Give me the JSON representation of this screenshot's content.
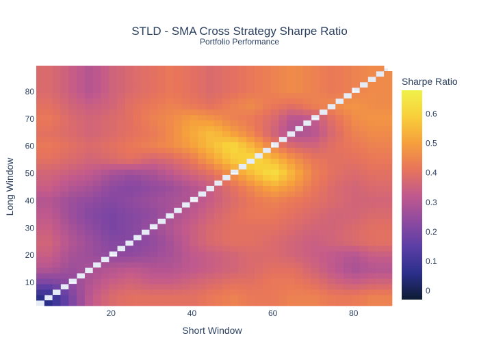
{
  "chart_data": {
    "type": "heatmap",
    "title": "STLD - SMA Cross Strategy Sharpe Ratio",
    "subtitle": "Portfolio Performance",
    "xlabel": "Short Window",
    "ylabel": "Long Window",
    "x_range": [
      2,
      88
    ],
    "y_range": [
      2,
      88
    ],
    "xlim": [
      1.5,
      88.5
    ],
    "ylim": [
      1.5,
      88.5
    ],
    "x_ticks": [
      20,
      40,
      60,
      80
    ],
    "y_ticks": [
      10,
      20,
      30,
      40,
      50,
      60,
      70,
      80
    ],
    "colorbar": {
      "title": "Sharpe Ratio",
      "range": [
        -0.03,
        0.68
      ],
      "ticks": [
        0,
        0.1,
        0.2,
        0.3,
        0.4,
        0.5,
        0.6
      ],
      "colorscale": [
        "#0d1c33",
        "#2b2f8a",
        "#5a3ea6",
        "#8e4aa0",
        "#c25a8c",
        "#e8755a",
        "#f6a03c",
        "#f8cf3a",
        "#f0f14a"
      ]
    },
    "diagonal": "no value where short window equals long window",
    "sharpe_grid_rows_long_window_80_to_5_by_5_cols_short_window_5_to_85_by_5": [
      [
        0.38,
        0.34,
        0.3,
        0.35,
        0.38,
        0.4,
        0.42,
        0.4,
        0.38,
        0.4,
        0.42,
        0.44,
        0.46,
        0.44,
        0.42,
        0.44,
        0.46
      ],
      [
        0.4,
        0.36,
        0.34,
        0.36,
        0.4,
        0.42,
        0.44,
        0.42,
        0.4,
        0.44,
        0.46,
        0.42,
        0.4,
        0.44,
        0.46,
        0.48,
        0.46
      ],
      [
        0.42,
        0.38,
        0.36,
        0.38,
        0.4,
        0.44,
        0.46,
        0.5,
        0.48,
        0.44,
        0.42,
        0.38,
        0.3,
        0.32,
        0.4,
        0.46,
        0.48
      ],
      [
        0.4,
        0.38,
        0.36,
        0.38,
        0.4,
        0.42,
        0.46,
        0.52,
        0.56,
        0.5,
        0.44,
        0.36,
        0.28,
        0.3,
        0.38,
        0.44,
        0.46
      ],
      [
        0.42,
        0.4,
        0.38,
        0.4,
        0.42,
        0.44,
        0.46,
        0.5,
        0.56,
        0.62,
        0.54,
        0.44,
        0.38,
        0.36,
        0.4,
        0.42,
        0.44
      ],
      [
        0.4,
        0.38,
        0.36,
        0.38,
        0.4,
        0.36,
        0.38,
        0.42,
        0.5,
        0.58,
        0.62,
        0.56,
        0.48,
        0.42,
        0.4,
        0.4,
        0.42
      ],
      [
        0.36,
        0.34,
        0.32,
        0.28,
        0.26,
        0.28,
        0.32,
        0.36,
        0.4,
        0.48,
        0.56,
        0.64,
        0.54,
        0.44,
        0.4,
        0.38,
        0.4
      ],
      [
        0.34,
        0.3,
        0.28,
        0.24,
        0.22,
        0.24,
        0.26,
        0.3,
        0.34,
        0.4,
        0.46,
        0.52,
        0.48,
        0.42,
        0.38,
        0.36,
        0.38
      ],
      [
        0.3,
        0.26,
        0.24,
        0.22,
        0.24,
        0.26,
        0.28,
        0.3,
        0.34,
        0.38,
        0.42,
        0.44,
        0.42,
        0.4,
        0.38,
        0.36,
        0.36
      ],
      [
        0.32,
        0.26,
        0.22,
        0.2,
        0.22,
        0.24,
        0.28,
        0.32,
        0.36,
        0.4,
        0.42,
        0.42,
        0.4,
        0.38,
        0.36,
        0.36,
        0.38
      ],
      [
        0.34,
        0.28,
        0.24,
        0.2,
        0.22,
        0.26,
        0.3,
        0.34,
        0.38,
        0.4,
        0.4,
        0.4,
        0.38,
        0.36,
        0.36,
        0.38,
        0.4
      ],
      [
        0.36,
        0.3,
        0.26,
        0.22,
        0.22,
        0.24,
        0.28,
        0.34,
        0.38,
        0.4,
        0.4,
        0.38,
        0.36,
        0.34,
        0.36,
        0.38,
        0.4
      ],
      [
        0.34,
        0.28,
        0.26,
        0.24,
        0.24,
        0.26,
        0.28,
        0.32,
        0.34,
        0.36,
        0.38,
        0.38,
        0.36,
        0.34,
        0.32,
        0.3,
        0.34
      ],
      [
        0.3,
        0.26,
        0.28,
        0.3,
        0.32,
        0.3,
        0.3,
        0.32,
        0.34,
        0.36,
        0.38,
        0.4,
        0.4,
        0.36,
        0.32,
        0.28,
        0.3
      ],
      [
        0.2,
        0.24,
        0.3,
        0.34,
        0.36,
        0.34,
        0.34,
        0.36,
        0.38,
        0.4,
        0.4,
        0.42,
        0.42,
        0.4,
        0.36,
        0.34,
        0.36
      ],
      [
        0.06,
        0.2,
        0.32,
        0.38,
        0.4,
        0.4,
        0.4,
        0.4,
        0.42,
        0.44,
        0.42,
        0.42,
        0.44,
        0.44,
        0.42,
        0.42,
        0.44
      ]
    ]
  }
}
